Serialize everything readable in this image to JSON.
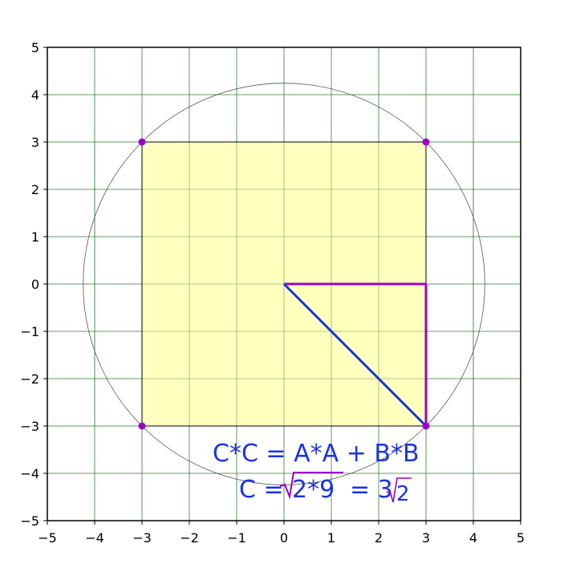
{
  "chart_data": {
    "type": "geometry",
    "xlim": [
      -5,
      5
    ],
    "ylim": [
      -5,
      5
    ],
    "grid": true,
    "x_ticks": [
      "−5",
      "−4",
      "−3",
      "−2",
      "−1",
      "0",
      "1",
      "2",
      "3",
      "4",
      "5"
    ],
    "y_ticks": [
      "5",
      "4",
      "3",
      "2",
      "1",
      "0",
      "−1",
      "−2",
      "−3",
      "−4",
      "−5"
    ],
    "square": {
      "vertices": [
        [
          -3,
          3
        ],
        [
          3,
          3
        ],
        [
          3,
          -3
        ],
        [
          -3,
          -3
        ]
      ],
      "fill_color": "#ffffb3"
    },
    "circle": {
      "center": [
        0,
        0
      ],
      "radius": 4.2426
    },
    "points": [
      {
        "x": -3,
        "y": 3
      },
      {
        "x": 3,
        "y": 3
      },
      {
        "x": -3,
        "y": -3
      },
      {
        "x": 3,
        "y": -3
      }
    ],
    "triangle_legs": [
      {
        "from": [
          0,
          0
        ],
        "to": [
          3,
          0
        ]
      },
      {
        "from": [
          3,
          0
        ],
        "to": [
          3,
          -3
        ]
      }
    ],
    "hypotenuse": {
      "from": [
        0,
        0
      ],
      "to": [
        3,
        -3
      ]
    },
    "colors": {
      "grid": "#2e7d2e",
      "points": "#9900cc",
      "legs": "#9900cc",
      "hypotenuse": "#1a33e6",
      "formula": "#1833e6",
      "radical": "#9900cc"
    }
  },
  "formula": {
    "line1": "C*C = A*A + B*B",
    "line2_prefix": "C =",
    "line2_radicand": "2*9",
    "line2_equals": "= 3",
    "line2_radicand2": "2"
  }
}
